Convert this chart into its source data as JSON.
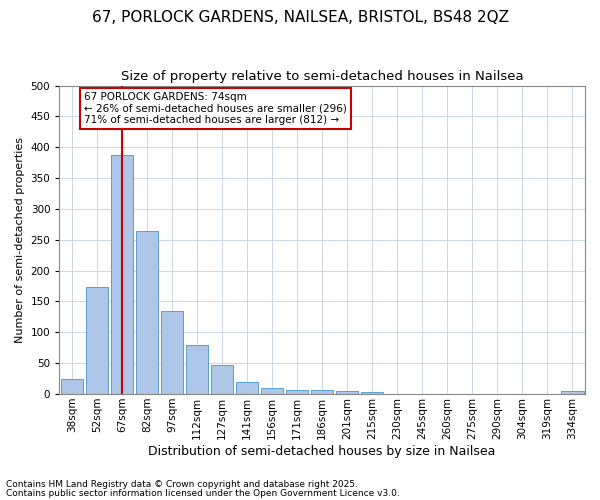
{
  "title1": "67, PORLOCK GARDENS, NAILSEA, BRISTOL, BS48 2QZ",
  "title2": "Size of property relative to semi-detached houses in Nailsea",
  "xlabel": "Distribution of semi-detached houses by size in Nailsea",
  "ylabel": "Number of semi-detached properties",
  "categories": [
    "38sqm",
    "52sqm",
    "67sqm",
    "82sqm",
    "97sqm",
    "112sqm",
    "127sqm",
    "141sqm",
    "156sqm",
    "171sqm",
    "186sqm",
    "201sqm",
    "215sqm",
    "230sqm",
    "245sqm",
    "260sqm",
    "275sqm",
    "290sqm",
    "304sqm",
    "319sqm",
    "334sqm"
  ],
  "values": [
    25,
    174,
    388,
    265,
    134,
    80,
    47,
    20,
    10,
    6,
    6,
    5,
    3,
    0,
    0,
    0,
    0,
    0,
    0,
    0,
    5
  ],
  "bar_color": "#aec6e8",
  "bar_edge_color": "#5a9fd4",
  "vline_x_index": 2,
  "vline_color": "#cc0000",
  "annotation_text": "67 PORLOCK GARDENS: 74sqm\n← 26% of semi-detached houses are smaller (296)\n71% of semi-detached houses are larger (812) →",
  "annotation_box_color": "#ffffff",
  "annotation_box_edge": "#cc0000",
  "footnote1": "Contains HM Land Registry data © Crown copyright and database right 2025.",
  "footnote2": "Contains public sector information licensed under the Open Government Licence v3.0.",
  "bg_color": "#ffffff",
  "grid_color": "#c8d8e8",
  "ylim": [
    0,
    500
  ],
  "yticks": [
    0,
    50,
    100,
    150,
    200,
    250,
    300,
    350,
    400,
    450,
    500
  ],
  "title1_fontsize": 11,
  "title2_fontsize": 9.5,
  "xlabel_fontsize": 9,
  "ylabel_fontsize": 8,
  "tick_fontsize": 7.5,
  "footnote_fontsize": 6.5,
  "annotation_fontsize": 7.5
}
